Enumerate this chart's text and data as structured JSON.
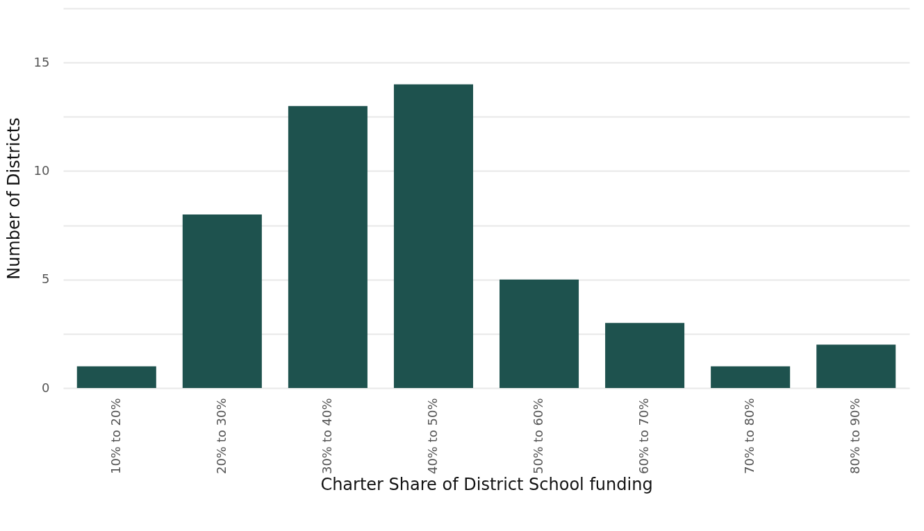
{
  "chart_data": {
    "type": "bar",
    "xlabel": "Charter Share of District School funding",
    "ylabel": "Number of Districts",
    "categories": [
      "10% to 20%",
      "20% to 30%",
      "30% to 40%",
      "40% to 50%",
      "50% to 60%",
      "60% to 70%",
      "70% to 80%",
      "80% to 90%"
    ],
    "values": [
      1,
      8,
      13,
      14,
      5,
      3,
      1,
      2
    ],
    "color": "#1e524e",
    "ylim": [
      0,
      17.5
    ],
    "yticks": [
      0,
      {
        "value": 2.5,
        "label": null
      },
      5,
      {
        "value": 7.5,
        "label": null
      },
      10,
      {
        "value": 12.5,
        "label": null
      },
      15,
      {
        "value": 17.5,
        "label": null
      }
    ],
    "grid": "y"
  }
}
